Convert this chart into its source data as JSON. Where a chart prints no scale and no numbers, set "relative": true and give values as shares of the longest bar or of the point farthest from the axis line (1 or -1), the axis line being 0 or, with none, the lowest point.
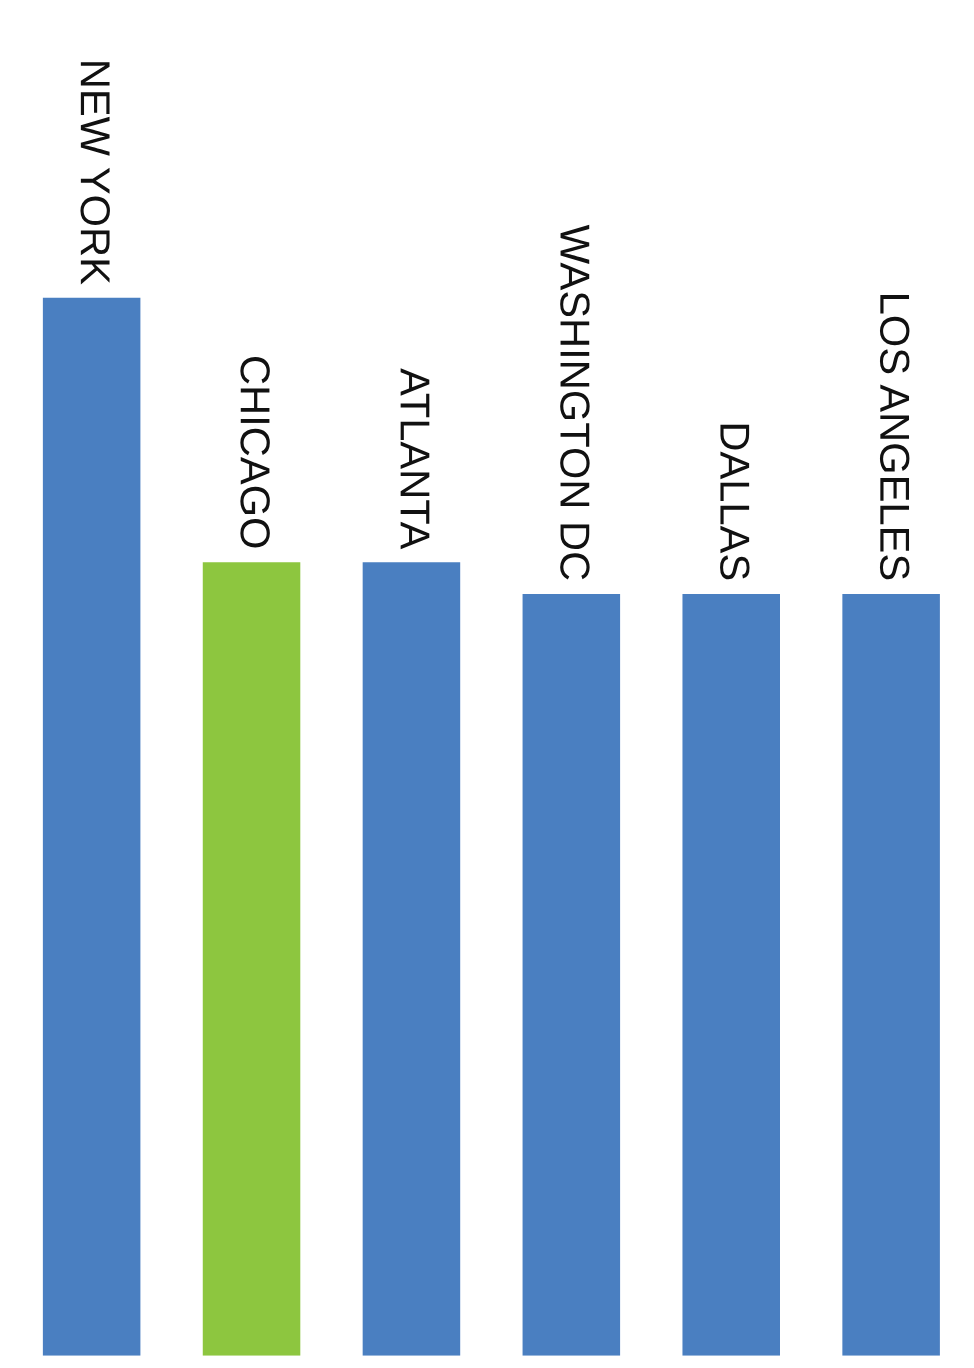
{
  "chart_data": {
    "type": "bar",
    "relative": true,
    "categories": [
      "NEW YORK",
      "CHICAGO",
      "ATLANTA",
      "WASHINGTON DC",
      "DALLAS",
      "LOS ANGELES"
    ],
    "values": [
      1,
      0.75,
      0.75,
      0.72,
      0.72,
      0.72
    ],
    "colors": [
      "#4a7fc1",
      "#8dc63f",
      "#4a7fc1",
      "#4a7fc1",
      "#4a7fc1",
      "#4a7fc1"
    ]
  }
}
